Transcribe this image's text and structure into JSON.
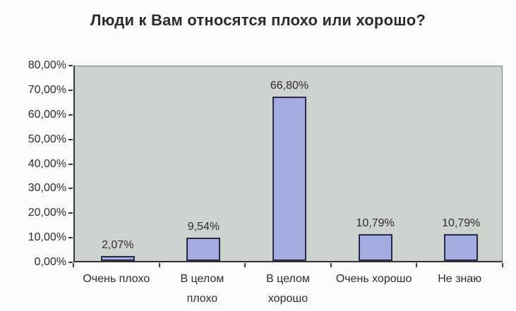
{
  "page": {
    "background": "#fbfbfa"
  },
  "chart_data": {
    "type": "bar",
    "title": "Люди к Вам относятся плохо или хорошо?",
    "categories": [
      "Очень плохо",
      "В целом\nплохо",
      "В целом\nхорошо",
      "Очень хорошо",
      "Не знаю"
    ],
    "values": [
      2.07,
      9.54,
      66.8,
      10.79,
      10.79
    ],
    "value_labels": [
      "2,07%",
      "9,54%",
      "66,80%",
      "10,79%",
      "10,79%"
    ],
    "y_tick_labels": [
      "80,00%",
      "70,00%",
      "60,00%",
      "50,00%",
      "40,00%",
      "30,00%",
      "20,00%",
      "10,00%",
      "0,00%"
    ],
    "ylim": [
      0,
      80
    ],
    "y_step": 10,
    "grid": false,
    "legend": "none",
    "xlabel": "",
    "ylabel": "",
    "colors": {
      "bar_fill": "#a3abe0",
      "bar_border": "#272b45",
      "plot_bg": "#cdd1cd",
      "axis": "#3c3c3c",
      "text": "#2e2e2e",
      "page_bg": "#fbfbfa"
    }
  },
  "layout_note": "scanned static chart image; no interactive controls visible"
}
